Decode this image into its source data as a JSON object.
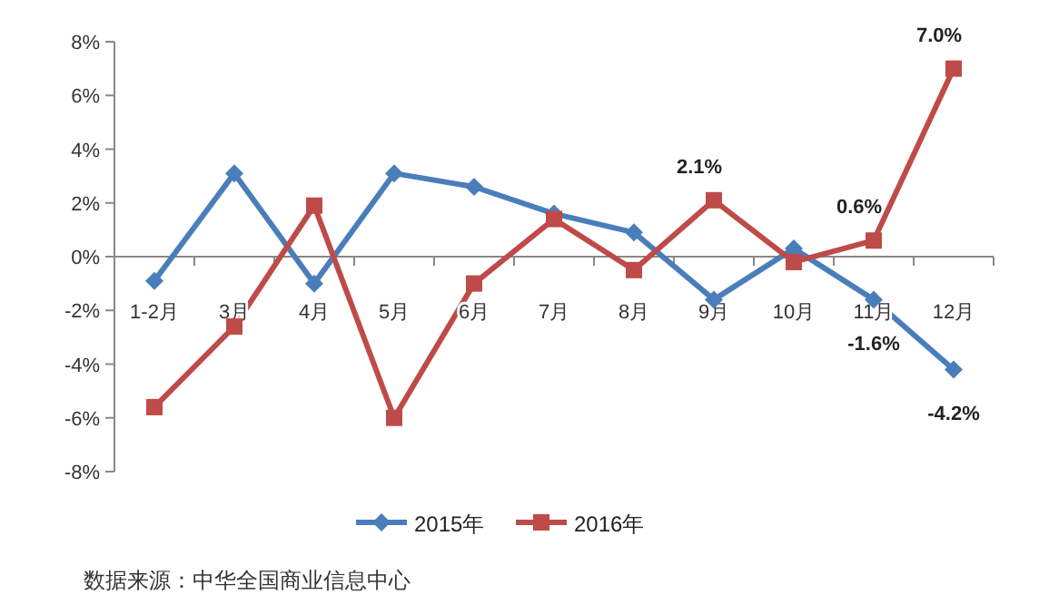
{
  "chart_data": {
    "type": "line",
    "categories": [
      "1-2月",
      "3月",
      "4月",
      "5月",
      "6月",
      "7月",
      "8月",
      "9月",
      "10月",
      "11月",
      "12月"
    ],
    "series": [
      {
        "name": "2015年",
        "color": "#4a7ebb",
        "marker": "diamond",
        "values": [
          -0.9,
          3.1,
          -1.0,
          3.1,
          2.6,
          1.6,
          0.9,
          -1.6,
          0.3,
          -1.6,
          -4.2
        ],
        "value_labels": [
          null,
          null,
          null,
          null,
          null,
          null,
          null,
          null,
          null,
          "-1.6%",
          "-4.2%"
        ]
      },
      {
        "name": "2016年",
        "color": "#be4b48",
        "marker": "square",
        "values": [
          -5.6,
          -2.6,
          1.9,
          -6.0,
          -1.0,
          1.4,
          -0.5,
          2.1,
          -0.2,
          0.6,
          7.0
        ],
        "value_labels": [
          null,
          null,
          null,
          null,
          null,
          null,
          null,
          "2.1%",
          null,
          "0.6%",
          "7.0%"
        ]
      }
    ],
    "ylim": [
      -8,
      8
    ],
    "yticks": [
      {
        "value": -8,
        "label": "-8%"
      },
      {
        "value": -6,
        "label": "-6%"
      },
      {
        "value": -4,
        "label": "-4%"
      },
      {
        "value": -2,
        "label": "-2%"
      },
      {
        "value": 0,
        "label": "0%"
      },
      {
        "value": 2,
        "label": "2%"
      },
      {
        "value": 4,
        "label": "4%"
      },
      {
        "value": 6,
        "label": "6%"
      },
      {
        "value": 8,
        "label": "8%"
      }
    ],
    "legend": "bottom",
    "annotations": [
      "数据来源：中华全国商业信息中心"
    ]
  }
}
